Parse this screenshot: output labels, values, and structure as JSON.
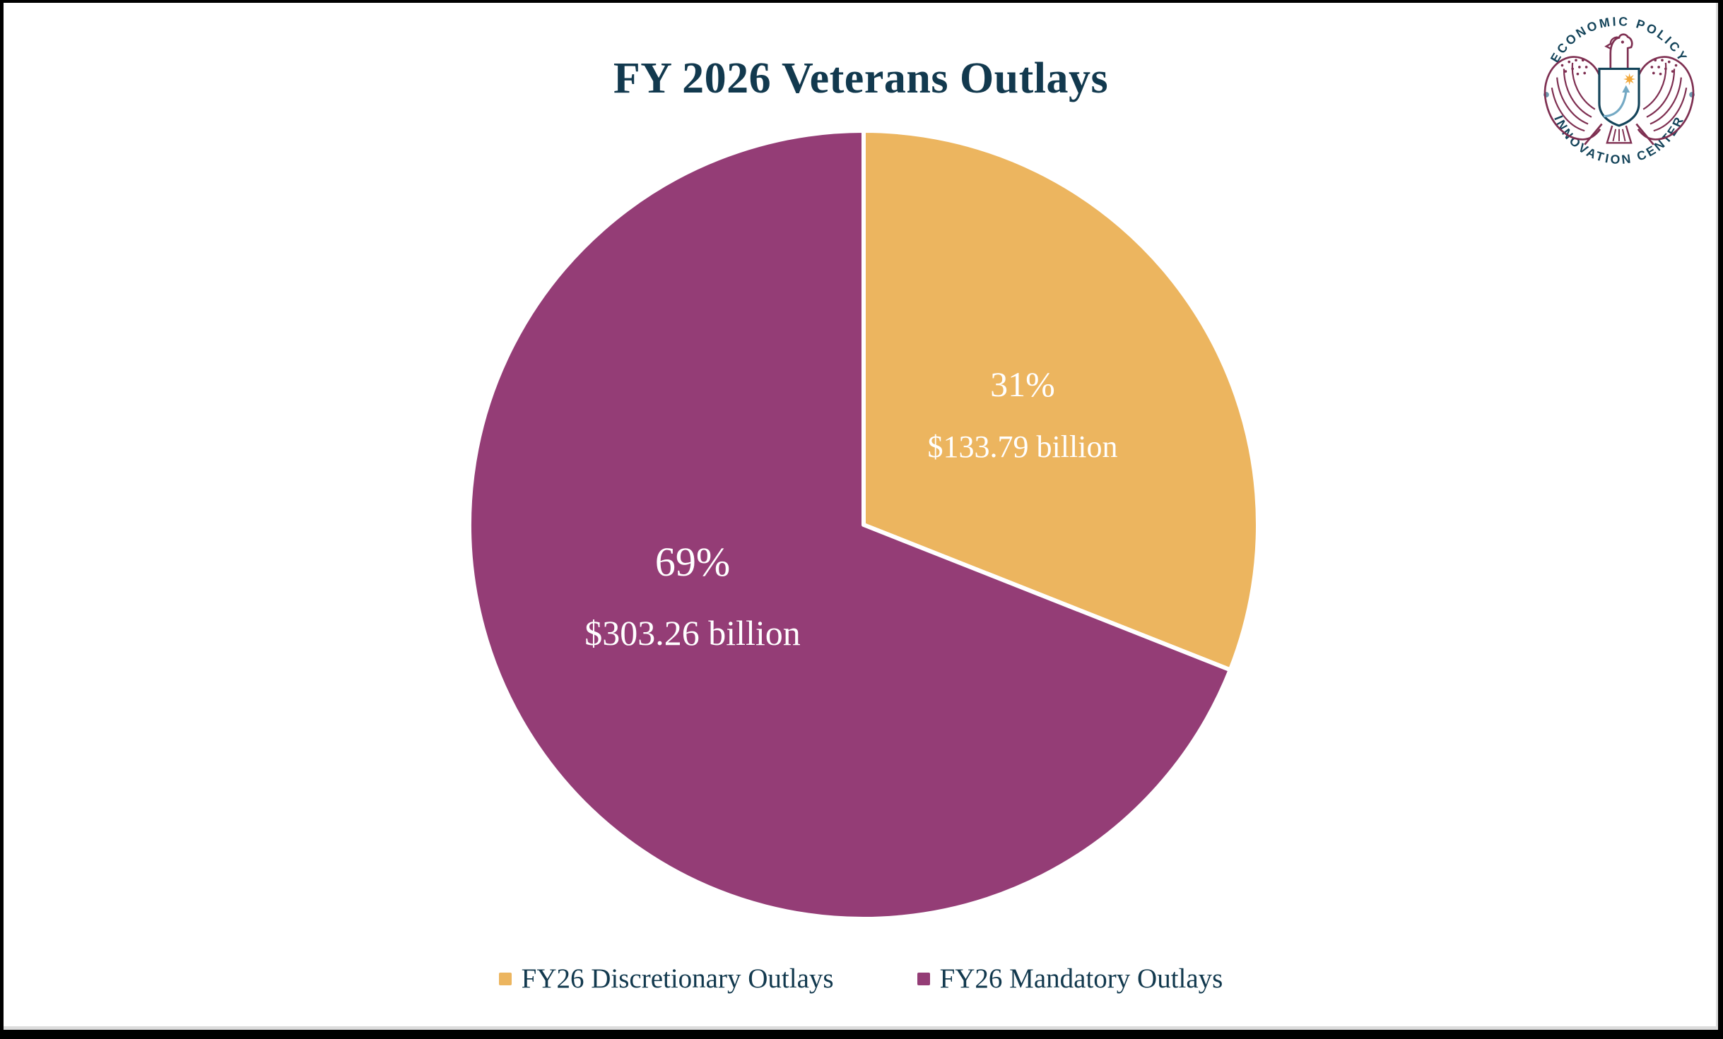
{
  "page": {
    "title": "FY 2026 Veterans Outlays"
  },
  "logo": {
    "arc_top": "ECONOMIC POLICY",
    "arc_bottom": "INNOVATION CENTER",
    "colors": {
      "text": "#14445A",
      "eagle": "#7E2F51",
      "shield_outline": "#14445A",
      "star": "#F2A83B",
      "arrow": "#74A9C4",
      "dots": "#6B98AE"
    }
  },
  "chart_data": {
    "type": "pie",
    "title": "FY 2026 Veterans Outlays",
    "direction": "clockwise",
    "start_angle_deg": 0,
    "legend_position": "bottom",
    "divider_color": "#ffffff",
    "slices": [
      {
        "id": "discretionary",
        "label": "FY26 Discretionary Outlays",
        "percent": 31,
        "percent_label": "31%",
        "value_billions": 133.79,
        "value_label": "$133.79 billion",
        "color": "#ECB55F"
      },
      {
        "id": "mandatory",
        "label": "FY26 Mandatory Outlays",
        "percent": 69,
        "percent_label": "69%",
        "value_billions": 303.26,
        "value_label": "$303.26 billion",
        "color": "#943D76"
      }
    ]
  }
}
